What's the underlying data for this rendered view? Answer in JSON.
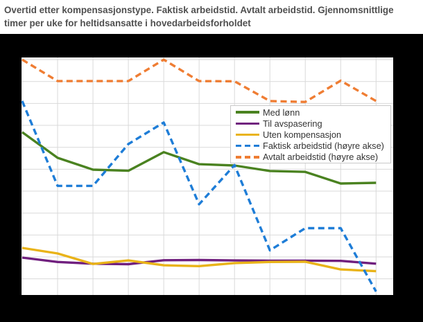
{
  "title": "Overtid etter kompensasjonstype. Faktisk arbeidstid. Avtalt arbeidstid. Gjennomsnittlige timer per uke for heltidsansatte i hovedarbeidsforholdet",
  "colors": {
    "page_background": "#000000",
    "panel_background": "#ffffff",
    "title_text": "#4f4f4f",
    "gridline": "#d9d9d9",
    "legend_border": "#c8c8c8",
    "legend_text": "#333333"
  },
  "chart_data": {
    "type": "line",
    "title": "Overtid etter kompensasjonstype. Faktisk arbeidstid. Avtalt arbeidstid. Gjennomsnittlige timer per uke for heltidsansatte i hovedarbeidsforholdet",
    "x_index": [
      1,
      2,
      3,
      4,
      5,
      6,
      7,
      8,
      9,
      10,
      11
    ],
    "x_tick_labels": "not visible (cropped out of screenshot)",
    "y_tick_labels": "not visible (cropped out of screenshot)",
    "y_units": "horizontal-gridline units; 1 unit = one gridline spacing, 0 = first gridline below the visible bottom edge, 11 = top plot border",
    "ylim": [
      0,
      11
    ],
    "grid": true,
    "legend_position": "inside top-right",
    "series": [
      {
        "name": "Med lønn",
        "axis": "left",
        "line_style": "solid",
        "color": "#4a8220",
        "values": [
          7.69,
          6.52,
          5.98,
          5.93,
          6.78,
          6.23,
          6.17,
          5.92,
          5.88,
          5.35,
          5.38
        ]
      },
      {
        "name": "Til avspasering",
        "axis": "left",
        "line_style": "solid",
        "color": "#701f7e",
        "values": [
          1.97,
          1.77,
          1.69,
          1.67,
          1.85,
          1.86,
          1.84,
          1.83,
          1.83,
          1.82,
          1.69
        ]
      },
      {
        "name": "Uten kompensasjon",
        "axis": "left",
        "line_style": "solid",
        "color": "#e9b318",
        "values": [
          2.41,
          2.16,
          1.68,
          1.84,
          1.62,
          1.58,
          1.72,
          1.77,
          1.78,
          1.43,
          1.35
        ]
      },
      {
        "name": "Faktisk arbeidstid (høyre akse)",
        "axis": "right",
        "line_style": "dashed",
        "color": "#1e7dd7",
        "values": [
          9.11,
          5.24,
          5.24,
          7.15,
          8.13,
          4.4,
          6.19,
          2.3,
          3.31,
          3.31,
          0.42
        ]
      },
      {
        "name": "Avtalt arbeidstid (høyre akse)",
        "axis": "right",
        "line_style": "dashed",
        "color": "#ef7d33",
        "values": [
          11.0,
          10.02,
          10.02,
          10.02,
          11.0,
          10.02,
          10.01,
          9.11,
          9.07,
          10.04,
          9.11
        ]
      }
    ]
  }
}
